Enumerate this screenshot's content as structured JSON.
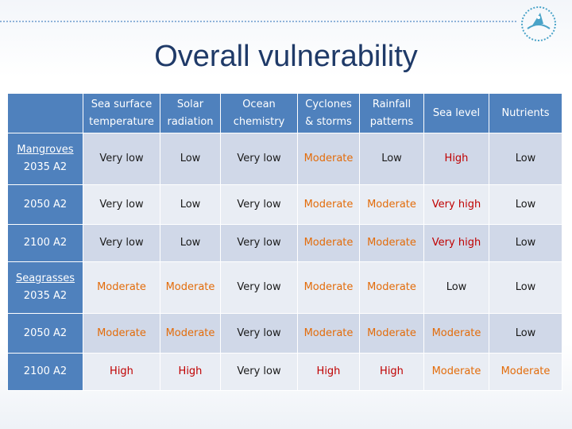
{
  "title": "Overall vulnerability",
  "columns": [
    {
      "l1": "",
      "l2": ""
    },
    {
      "l1": "Sea surface",
      "l2": "temperature"
    },
    {
      "l1": "Solar",
      "l2": "radiation"
    },
    {
      "l1": "Ocean",
      "l2": "chemistry"
    },
    {
      "l1": "Cyclones",
      "l2": "& storms"
    },
    {
      "l1": "Rainfall",
      "l2": "patterns"
    },
    {
      "l1": "Sea level",
      "l2": ""
    },
    {
      "l1": "Nutrients",
      "l2": ""
    }
  ],
  "rows": [
    {
      "group": "Mangroves",
      "label": "2035 A2",
      "cells": [
        "Very low",
        "Low",
        "Very low",
        "Moderate",
        "Low",
        "High",
        "Low"
      ],
      "tone": [
        "n",
        "n",
        "n",
        "m",
        "n",
        "h",
        "n"
      ]
    },
    {
      "group": "",
      "label": "2050 A2",
      "cells": [
        "Very low",
        "Low",
        "Very low",
        "Moderate",
        "Moderate",
        "Very high",
        "Low"
      ],
      "tone": [
        "n",
        "n",
        "n",
        "m",
        "m",
        "h",
        "n"
      ]
    },
    {
      "group": "",
      "label": "2100 A2",
      "cells": [
        "Very low",
        "Low",
        "Very low",
        "Moderate",
        "Moderate",
        "Very high",
        "Low"
      ],
      "tone": [
        "n",
        "n",
        "n",
        "m",
        "m",
        "h",
        "n"
      ]
    },
    {
      "group": "Seagrasses",
      "label": "2035 A2",
      "cells": [
        "Moderate",
        "Moderate",
        "Very low",
        "Moderate",
        "Moderate",
        "Low",
        "Low"
      ],
      "tone": [
        "m",
        "m",
        "n",
        "m",
        "m",
        "n",
        "n"
      ]
    },
    {
      "group": "",
      "label": "2050 A2",
      "cells": [
        "Moderate",
        "Moderate",
        "Very low",
        "Moderate",
        "Moderate",
        "Moderate",
        "Low"
      ],
      "tone": [
        "m",
        "m",
        "n",
        "m",
        "m",
        "m",
        "n"
      ]
    },
    {
      "group": "",
      "label": "2100 A2",
      "cells": [
        "High",
        "High",
        "Very low",
        "High",
        "High",
        "Moderate",
        "Moderate"
      ],
      "tone": [
        "h",
        "h",
        "n",
        "h",
        "h",
        "m",
        "m"
      ]
    }
  ],
  "colors": {
    "header": "#4f81bd",
    "moderate": "#e36c0a",
    "high": "#c00000"
  },
  "icons": {
    "logo": "spc-logo-icon"
  }
}
